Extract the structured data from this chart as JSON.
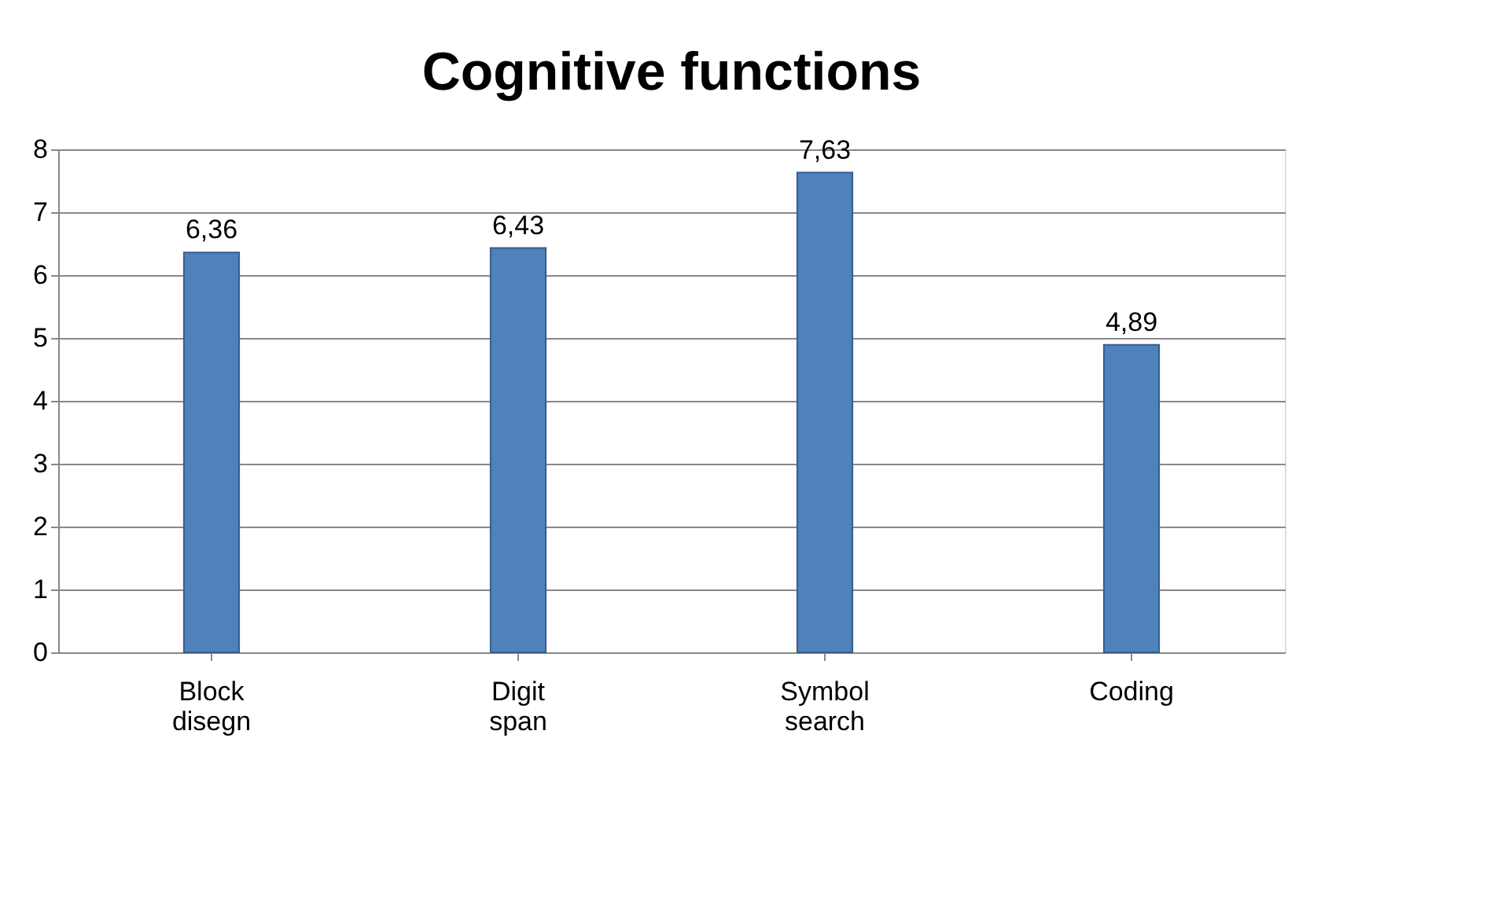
{
  "chart_data": {
    "type": "bar",
    "title": "Cognitive functions",
    "categories": [
      "Block disegn",
      "Digit span",
      "Symbol search",
      "Coding"
    ],
    "values": [
      6.36,
      6.43,
      7.63,
      4.89
    ],
    "value_labels": [
      "6,36",
      "6,43",
      "7,63",
      "4,89"
    ],
    "color": "#4f81bd",
    "ylim": [
      0,
      8
    ],
    "yticks": [
      0,
      1,
      2,
      3,
      4,
      5,
      6,
      7,
      8
    ],
    "grid": "y"
  }
}
